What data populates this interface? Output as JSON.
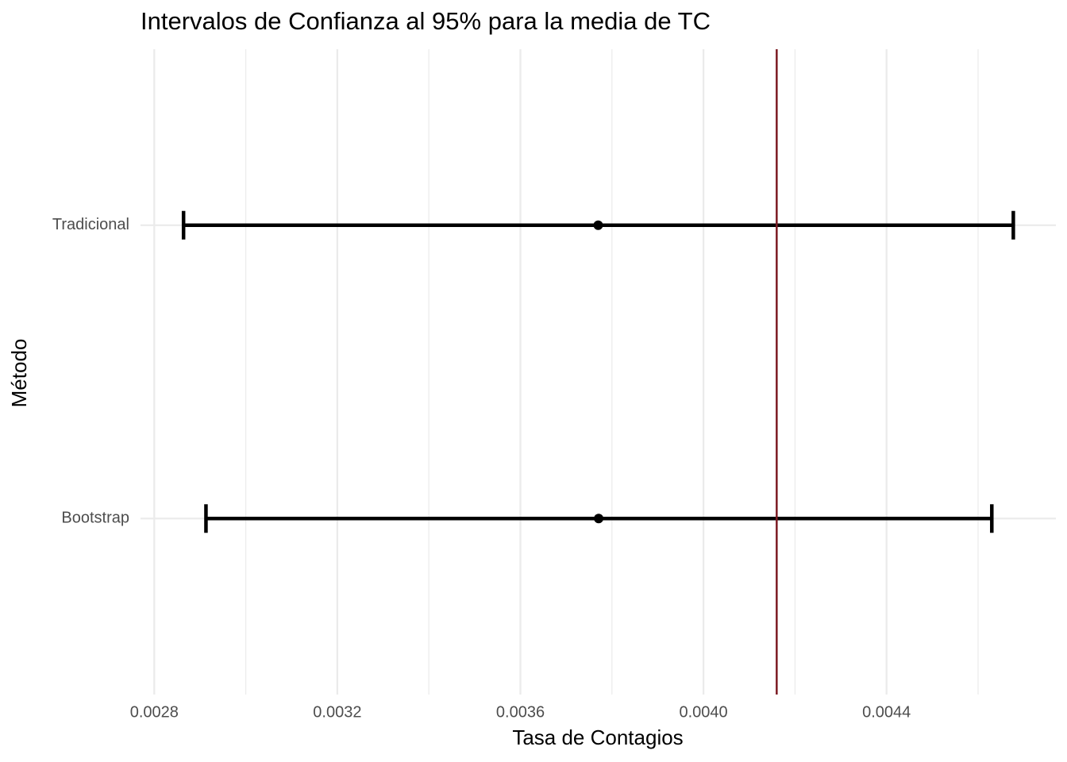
{
  "chart_data": {
    "type": "errorbar",
    "title": "Intervalos de Confianza al 95% para la media de TC",
    "x_label": "Tasa de Contagios",
    "y_label": "Método",
    "categories": [
      "Bootstrap",
      "Tradicional"
    ],
    "values": [
      0.003771,
      0.00377
    ],
    "lower": [
      0.002913,
      0.002864
    ],
    "upper": [
      0.00463,
      0.004677
    ],
    "color": "#000000",
    "reference_line": {
      "value": 0.00416,
      "color": "#7b1a22"
    },
    "xlim": [
      0.00277,
      0.00477
    ],
    "xticks": [
      0.0028,
      0.0032,
      0.0036,
      {
        "value": 0.004,
        "label": "0.0040"
      },
      0.0044
    ],
    "x_minor_gridlines": [
      0.003,
      0.0034,
      0.0038,
      0.0042,
      0.0046
    ],
    "grid": true
  }
}
